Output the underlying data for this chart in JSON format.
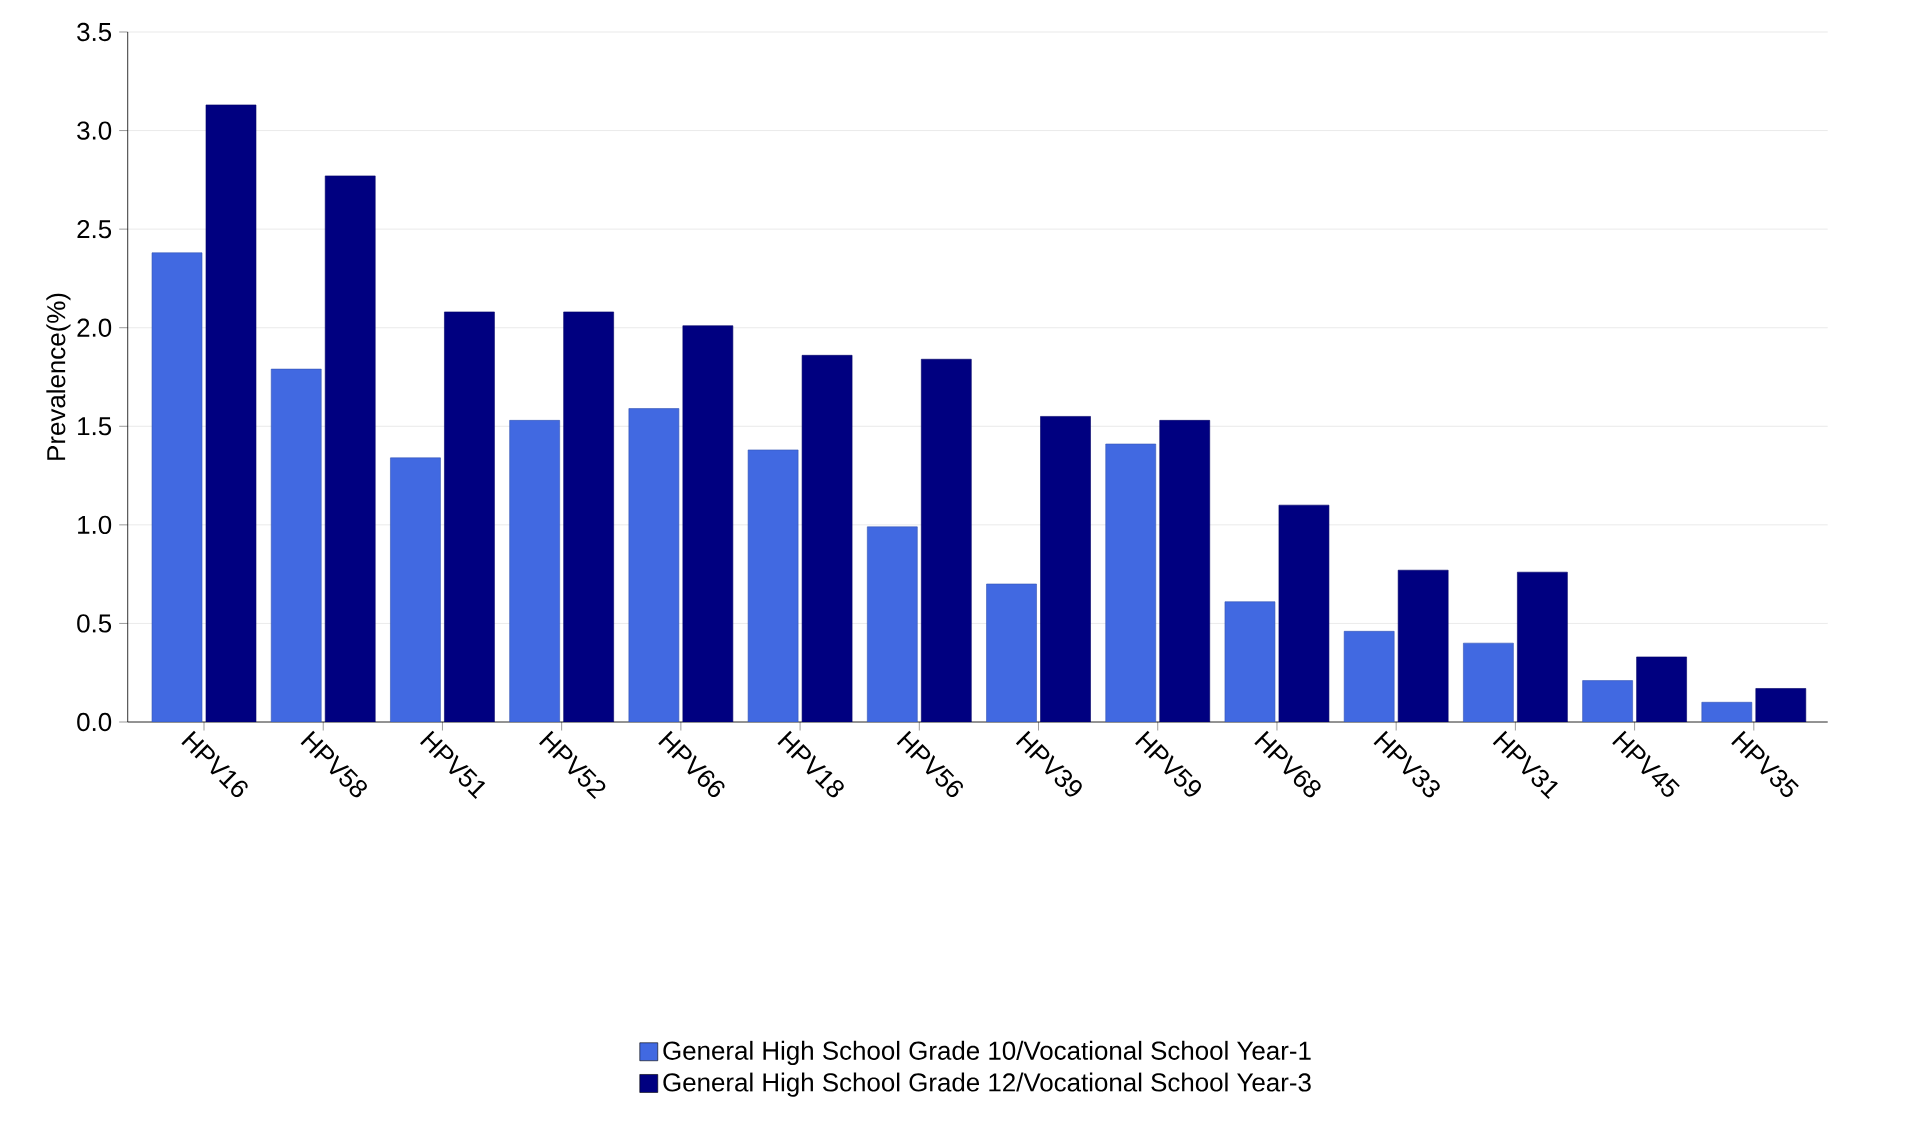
{
  "chart_data": {
    "type": "bar",
    "ylabel": "Prevalence(%)",
    "categories": [
      "HPV16",
      "HPV58",
      "HPV51",
      "HPV52",
      "HPV66",
      "HPV18",
      "HPV56",
      "HPV39",
      "HPV59",
      "HPV68",
      "HPV33",
      "HPV31",
      "HPV45",
      "HPV35"
    ],
    "series": [
      {
        "name": "General High School Grade 10/Vocational School Year-1",
        "color": "#4169e1",
        "values": [
          2.38,
          1.79,
          1.34,
          1.53,
          1.59,
          1.38,
          0.99,
          0.7,
          1.41,
          0.61,
          0.46,
          0.4,
          0.21,
          0.1
        ]
      },
      {
        "name": "General High School Grade 12/Vocational School Year-3",
        "color": "#000080",
        "values": [
          3.13,
          2.77,
          2.08,
          2.08,
          2.01,
          1.86,
          1.84,
          1.55,
          1.53,
          1.1,
          0.77,
          0.76,
          0.33,
          0.17
        ]
      }
    ],
    "ylim": [
      0,
      3.5
    ],
    "yticks": [
      {
        "value": 0,
        "label": "0.0"
      },
      {
        "value": 0.5,
        "label": "0.5"
      },
      {
        "value": 1,
        "label": "1.0"
      },
      {
        "value": 1.5,
        "label": "1.5"
      },
      {
        "value": 2,
        "label": "2.0"
      },
      {
        "value": 2.5,
        "label": "2.5"
      },
      {
        "value": 3,
        "label": "3.0"
      },
      {
        "value": 3.5,
        "label": "3.5"
      }
    ],
    "grid": "y",
    "legend": "bottom"
  }
}
